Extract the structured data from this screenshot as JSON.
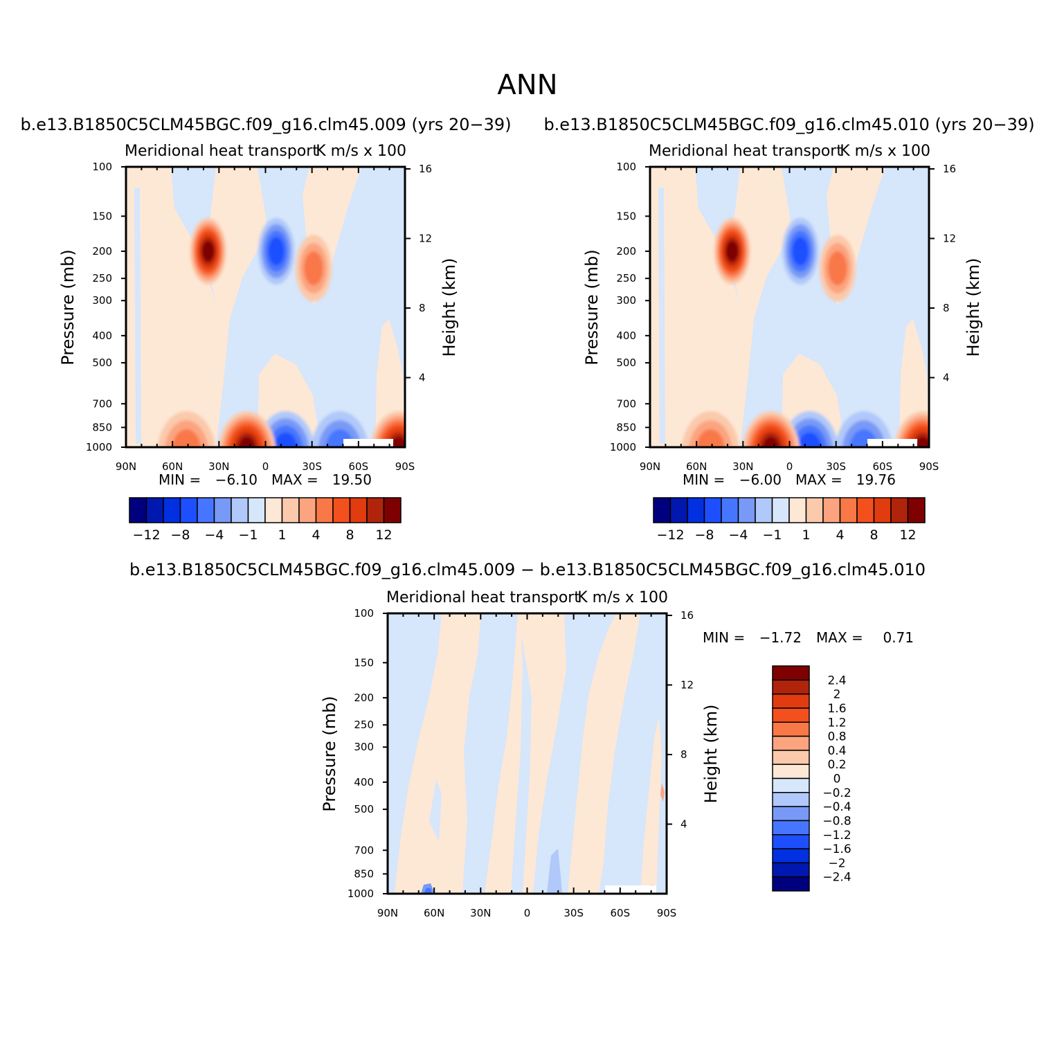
{
  "figure": {
    "title": "ANN"
  },
  "chart_data": [
    {
      "type": "heatmap",
      "title": "b.e13.B1850C5CLM45BGC.f09_g16.clm45.009 (yrs 20−39)",
      "subtitle_left": "Meridional heat transport",
      "subtitle_right": "K m/s x 100",
      "ylabel": "Pressure (mb)",
      "ylabel_right": "Height (km)",
      "x_ticks": [
        "90N",
        "60N",
        "30N",
        "0",
        "30S",
        "60S",
        "90S"
      ],
      "y_ticks": [
        "100",
        "150",
        "200",
        "250",
        "300",
        "400",
        "500",
        "700",
        "850",
        "1000"
      ],
      "y_right_ticks": [
        "16",
        "12",
        "8",
        "4"
      ],
      "stats": {
        "min_label": "MIN =",
        "min": "−6.10",
        "max_label": "MAX =",
        "max": "19.50"
      },
      "colorbar": {
        "orientation": "horizontal",
        "labels": [
          "−12",
          "−8",
          "−4",
          "−1",
          "1",
          "4",
          "8",
          "12"
        ],
        "colors": [
          "#00007f",
          "#0018b0",
          "#0030e0",
          "#1e4fff",
          "#4676ff",
          "#7899f6",
          "#b0c8fa",
          "#d6e6fb",
          "#fde8d6",
          "#fbc9ab",
          "#fba47f",
          "#f97848",
          "#f3501e",
          "#e03c10",
          "#b0240c",
          "#7f0000"
        ]
      },
      "features": [
        {
          "lat": 37,
          "p": 200,
          "value": 12
        },
        {
          "lat": -7,
          "p": 200,
          "value": -6
        },
        {
          "lat": -31,
          "p": 230,
          "value": 4
        },
        {
          "lat": -13,
          "p": 960,
          "value": -6
        },
        {
          "lat": 12,
          "p": 960,
          "value": 19.5
        },
        {
          "lat": 51,
          "p": 950,
          "value": 4
        },
        {
          "lat": -48,
          "p": 950,
          "value": -4
        },
        {
          "lat": -86,
          "p": 930,
          "value": 12
        }
      ]
    },
    {
      "type": "heatmap",
      "title": "b.e13.B1850C5CLM45BGC.f09_g16.clm45.010 (yrs 20−39)",
      "subtitle_left": "Meridional heat transport",
      "subtitle_right": "K m/s x 100",
      "ylabel": "Pressure (mb)",
      "ylabel_right": "Height (km)",
      "x_ticks": [
        "90N",
        "60N",
        "30N",
        "0",
        "30S",
        "60S",
        "90S"
      ],
      "y_ticks": [
        "100",
        "150",
        "200",
        "250",
        "300",
        "400",
        "500",
        "700",
        "850",
        "1000"
      ],
      "y_right_ticks": [
        "16",
        "12",
        "8",
        "4"
      ],
      "stats": {
        "min_label": "MIN =",
        "min": "−6.00",
        "max_label": "MAX =",
        "max": "19.76"
      },
      "colorbar": {
        "orientation": "horizontal",
        "labels": [
          "−12",
          "−8",
          "−4",
          "−1",
          "1",
          "4",
          "8",
          "12"
        ],
        "colors": [
          "#00007f",
          "#0018b0",
          "#0030e0",
          "#1e4fff",
          "#4676ff",
          "#7899f6",
          "#b0c8fa",
          "#d6e6fb",
          "#fde8d6",
          "#fbc9ab",
          "#fba47f",
          "#f97848",
          "#f3501e",
          "#e03c10",
          "#b0240c",
          "#7f0000"
        ]
      },
      "features": [
        {
          "lat": 37,
          "p": 200,
          "value": 12
        },
        {
          "lat": -7,
          "p": 200,
          "value": -6
        },
        {
          "lat": -31,
          "p": 230,
          "value": 4
        },
        {
          "lat": -13,
          "p": 960,
          "value": -6
        },
        {
          "lat": 12,
          "p": 960,
          "value": 19.76
        },
        {
          "lat": 51,
          "p": 950,
          "value": 4
        },
        {
          "lat": -48,
          "p": 950,
          "value": -4
        },
        {
          "lat": -86,
          "p": 930,
          "value": 12
        }
      ]
    },
    {
      "type": "heatmap",
      "title": "b.e13.B1850C5CLM45BGC.f09_g16.clm45.009 − b.e13.B1850C5CLM45BGC.f09_g16.clm45.010",
      "subtitle_left": "Meridional heat transport",
      "subtitle_right": "K m/s x 100",
      "ylabel": "Pressure (mb)",
      "ylabel_right": "Height (km)",
      "x_ticks": [
        "90N",
        "60N",
        "30N",
        "0",
        "30S",
        "60S",
        "90S"
      ],
      "y_ticks": [
        "100",
        "150",
        "200",
        "250",
        "300",
        "400",
        "500",
        "700",
        "850",
        "1000"
      ],
      "y_right_ticks": [
        "16",
        "12",
        "8",
        "4"
      ],
      "stats": {
        "min_label": "MIN =",
        "min": "−1.72",
        "max_label": "MAX =",
        "max": "0.71"
      },
      "colorbar": {
        "orientation": "vertical",
        "labels": [
          "2.4",
          "2",
          "1.6",
          "1.2",
          "0.8",
          "0.4",
          "0.2",
          "0",
          "−0.2",
          "−0.4",
          "−0.8",
          "−1.2",
          "−1.6",
          "−2",
          "−2.4"
        ],
        "colors": [
          "#7f0000",
          "#b0240c",
          "#e03c10",
          "#f3501e",
          "#f97848",
          "#fba47f",
          "#fbc9ab",
          "#fde8d6",
          "#d6e6fb",
          "#b0c8fa",
          "#7899f6",
          "#4676ff",
          "#1e4fff",
          "#0030e0",
          "#0018b0",
          "#00007f"
        ]
      }
    }
  ]
}
